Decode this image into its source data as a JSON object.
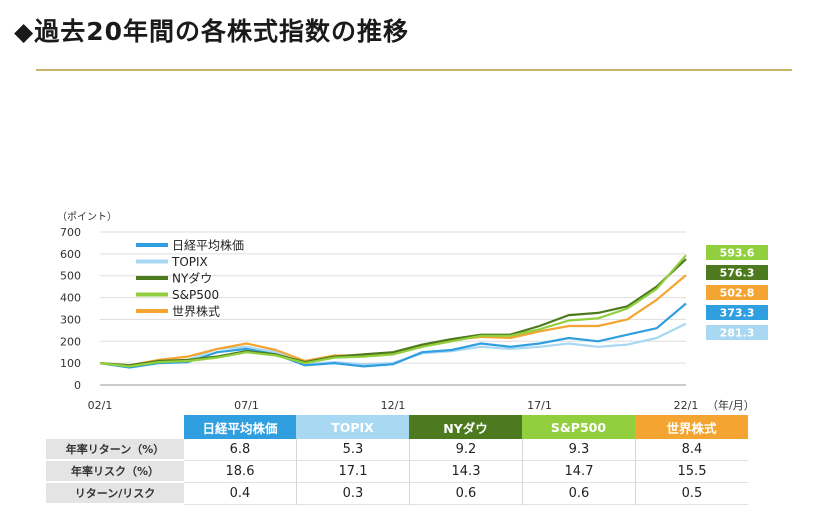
{
  "header": {
    "title": "◆過去20年間の各株式指数の推移"
  },
  "colors": {
    "nikkei": "#2f9fe0",
    "topix": "#a9d8f3",
    "nydow": "#4d7a1e",
    "sp500": "#92cf3e",
    "world": "#f4a531",
    "rule": "#c9b46a",
    "grid": "#dddddd"
  },
  "chart_data": {
    "type": "line",
    "ylabel": "（ポイント）",
    "xlabel": "（年/月）",
    "ylim": [
      0,
      700
    ],
    "yticks": [
      "0",
      "100",
      "200",
      "300",
      "400",
      "500",
      "600",
      "700"
    ],
    "xticks": [
      "02/1",
      "07/1",
      "12/1",
      "17/1",
      "22/1"
    ],
    "legend_position": "top-left",
    "x": [
      "02/1",
      "03/1",
      "04/1",
      "05/1",
      "06/1",
      "07/1",
      "08/1",
      "09/1",
      "10/1",
      "11/1",
      "12/1",
      "13/1",
      "14/1",
      "15/1",
      "16/1",
      "17/1",
      "18/1",
      "19/1",
      "20/1",
      "21/1",
      "22/1"
    ],
    "series": [
      {
        "name": "日経平均株価",
        "color_key": "nikkei",
        "end_label": "373.3",
        "values": [
          100,
          80,
          100,
          105,
          150,
          165,
          140,
          90,
          100,
          85,
          95,
          150,
          160,
          190,
          175,
          190,
          215,
          200,
          230,
          260,
          373
        ]
      },
      {
        "name": "TOPIX",
        "color_key": "topix",
        "end_label": "281.3",
        "values": [
          100,
          82,
          105,
          115,
          165,
          175,
          150,
          95,
          105,
          95,
          100,
          145,
          155,
          175,
          165,
          175,
          190,
          175,
          185,
          215,
          281
        ]
      },
      {
        "name": "NYダウ",
        "color_key": "nydow",
        "end_label": "576.3",
        "values": [
          100,
          90,
          110,
          115,
          130,
          155,
          140,
          105,
          130,
          140,
          150,
          185,
          210,
          230,
          230,
          270,
          320,
          330,
          360,
          450,
          576
        ]
      },
      {
        "name": "S&P500",
        "color_key": "sp500",
        "end_label": "593.6",
        "values": [
          100,
          85,
          105,
          110,
          125,
          150,
          135,
          100,
          125,
          130,
          140,
          175,
          200,
          225,
          225,
          255,
          295,
          305,
          350,
          440,
          594
        ]
      },
      {
        "name": "世界株式",
        "color_key": "world",
        "end_label": "502.8",
        "values": [
          100,
          90,
          115,
          130,
          165,
          190,
          160,
          110,
          135,
          135,
          145,
          180,
          205,
          220,
          215,
          245,
          270,
          270,
          300,
          390,
          503
        ]
      }
    ]
  },
  "stats": {
    "headers": [
      "日経平均株価",
      "TOPIX",
      "NYダウ",
      "S&P500",
      "世界株式"
    ],
    "header_colors": [
      "#2f9fe0",
      "#a9d8f3",
      "#4d7a1e",
      "#92cf3e",
      "#f4a531"
    ],
    "rows": [
      {
        "label": "年率リターン（%）",
        "values": [
          "6.8",
          "5.3",
          "9.2",
          "9.3",
          "8.4"
        ]
      },
      {
        "label": "年率リスク（%）",
        "values": [
          "18.6",
          "17.1",
          "14.3",
          "14.7",
          "15.5"
        ]
      },
      {
        "label": "リターン/リスク",
        "values": [
          "0.4",
          "0.3",
          "0.6",
          "0.6",
          "0.5"
        ]
      }
    ]
  }
}
